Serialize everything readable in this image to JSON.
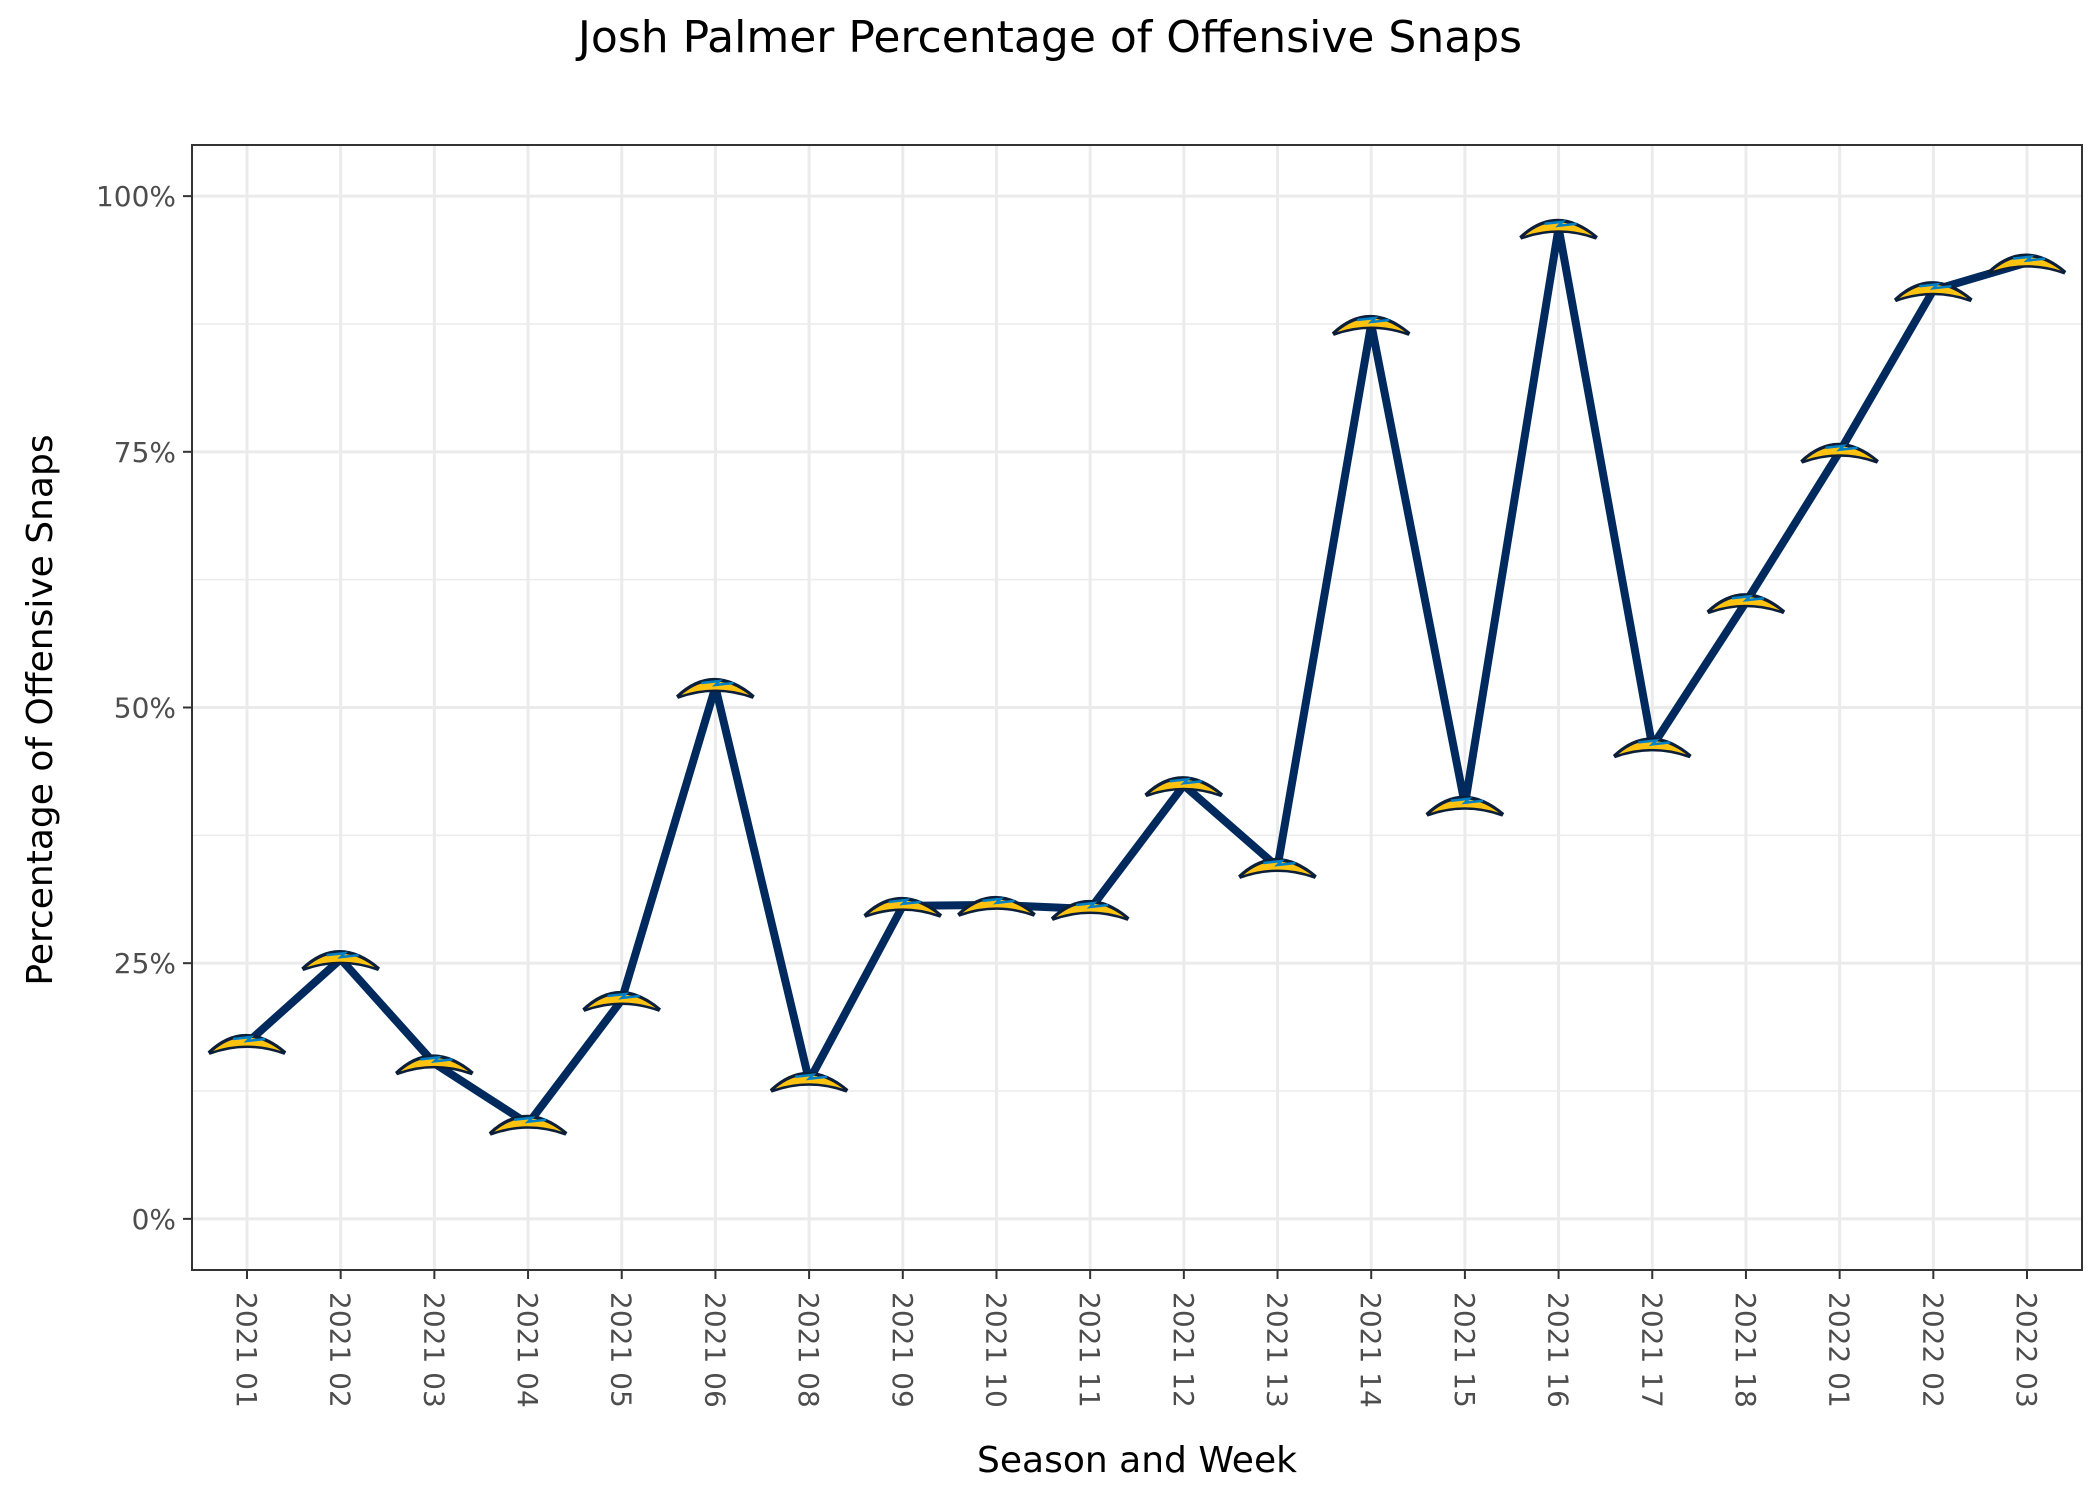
{
  "chart_data": {
    "type": "line",
    "title": "Josh Palmer Percentage of Offensive Snaps",
    "xlabel": "Season and Week",
    "ylabel": "Percentage of Offensive Snaps",
    "categories": [
      "2021 01",
      "2021 02",
      "2021 03",
      "2021 04",
      "2021 05",
      "2021 06",
      "2021 08",
      "2021 09",
      "2021 10",
      "2021 11",
      "2021 12",
      "2021 13",
      "2021 14",
      "2021 15",
      "2021 16",
      "2021 17",
      "2021 18",
      "2022 01",
      "2022 02",
      "2022 03"
    ],
    "series": [
      {
        "values": [
          17.2,
          25.4,
          15.2,
          9.3,
          21.4,
          52.0,
          13.5,
          30.6,
          30.7,
          30.3,
          42.4,
          34.4,
          87.5,
          40.5,
          96.9,
          46.2,
          60.3,
          75.0,
          90.8,
          93.5
        ]
      }
    ],
    "ylim": [
      -5,
      105
    ],
    "yticks": [
      0,
      25,
      50,
      75,
      100
    ],
    "ytick_labels": [
      "0%",
      "25%",
      "50%",
      "75%",
      "100%"
    ],
    "grid": true,
    "legend": "none",
    "line_color": "#002A5E",
    "marker": "chargers-bolt-logo",
    "marker_colors": {
      "fill": "#FFC20E",
      "outline": "#0080C6"
    }
  }
}
